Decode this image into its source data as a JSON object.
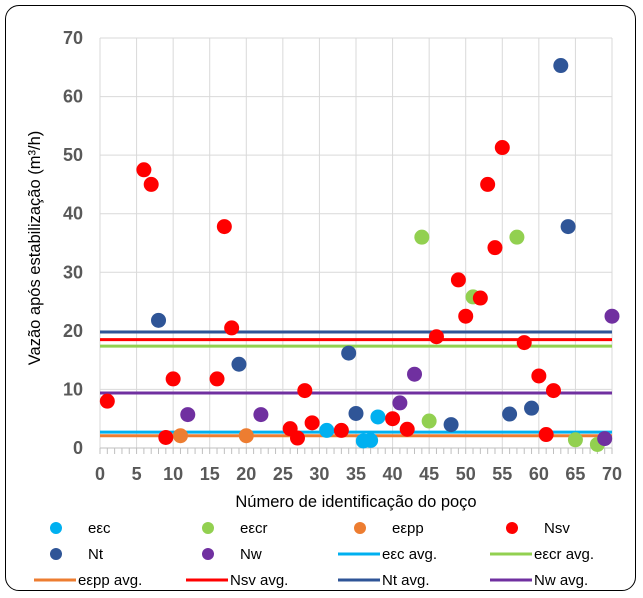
{
  "chart_data": {
    "type": "scatter",
    "title": "",
    "xlabel": "Número de identificação do poço",
    "ylabel": "Vazão após estabilização (m³/h)",
    "xlim": [
      0,
      70
    ],
    "ylim": [
      0,
      70
    ],
    "x_ticks": [
      0,
      5,
      10,
      15,
      20,
      25,
      30,
      35,
      40,
      45,
      50,
      55,
      60,
      65,
      70
    ],
    "y_ticks": [
      0,
      10,
      20,
      30,
      40,
      50,
      60,
      70
    ],
    "grid": "vertical",
    "legend_position": "bottom",
    "series": [
      {
        "name": "eεc",
        "color": "#00B0F0",
        "points": [
          [
            31,
            3.0
          ],
          [
            36,
            1.2
          ],
          [
            37,
            1.3
          ],
          [
            38,
            5.3
          ]
        ]
      },
      {
        "name": "eεcr",
        "color": "#92D050",
        "points": [
          [
            44,
            36.0
          ],
          [
            45,
            4.6
          ],
          [
            51,
            25.8
          ],
          [
            57,
            36.0
          ],
          [
            65,
            1.4
          ],
          [
            68,
            0.6
          ]
        ]
      },
      {
        "name": "eεpp",
        "color": "#ED7D31",
        "points": [
          [
            11,
            2.1
          ],
          [
            20,
            2.1
          ]
        ]
      },
      {
        "name": "Nsv",
        "color": "#FF0000",
        "points": [
          [
            1,
            8.0
          ],
          [
            6,
            47.5
          ],
          [
            7,
            45.0
          ],
          [
            9,
            1.8
          ],
          [
            10,
            11.8
          ],
          [
            16,
            11.8
          ],
          [
            17,
            37.8
          ],
          [
            18,
            20.5
          ],
          [
            26,
            3.3
          ],
          [
            27,
            1.7
          ],
          [
            28,
            9.8
          ],
          [
            29,
            4.3
          ],
          [
            33,
            3.0
          ],
          [
            40,
            5.0
          ],
          [
            42,
            3.2
          ],
          [
            46,
            19.0
          ],
          [
            49,
            28.7
          ],
          [
            50,
            22.5
          ],
          [
            52,
            25.6
          ],
          [
            53,
            45.0
          ],
          [
            54,
            34.2
          ],
          [
            55,
            51.3
          ],
          [
            58,
            18.0
          ],
          [
            60,
            12.3
          ],
          [
            61,
            2.3
          ],
          [
            62,
            9.8
          ]
        ]
      },
      {
        "name": "Nt",
        "color": "#2F5597",
        "points": [
          [
            8,
            21.8
          ],
          [
            19,
            14.3
          ],
          [
            34,
            16.2
          ],
          [
            35,
            5.9
          ],
          [
            48,
            4.0
          ],
          [
            56,
            5.8
          ],
          [
            59,
            6.8
          ],
          [
            63,
            65.3
          ],
          [
            64,
            37.8
          ]
        ]
      },
      {
        "name": "Nw",
        "color": "#7030A0",
        "points": [
          [
            12,
            5.7
          ],
          [
            22,
            5.7
          ],
          [
            41,
            7.7
          ],
          [
            43,
            12.6
          ],
          [
            69,
            1.6
          ],
          [
            70,
            22.5
          ]
        ]
      }
    ],
    "averages": [
      {
        "name": "eεc avg.",
        "color": "#00B0F0",
        "value": 2.7
      },
      {
        "name": "eεcr avg.",
        "color": "#92D050",
        "value": 17.4
      },
      {
        "name": "eεpp avg.",
        "color": "#ED7D31",
        "value": 2.1
      },
      {
        "name": "Nsv avg.",
        "color": "#FF0000",
        "value": 18.5
      },
      {
        "name": "Nt avg.",
        "color": "#2F5597",
        "value": 19.8
      },
      {
        "name": "Nw avg.",
        "color": "#7030A0",
        "value": 9.4
      }
    ]
  }
}
